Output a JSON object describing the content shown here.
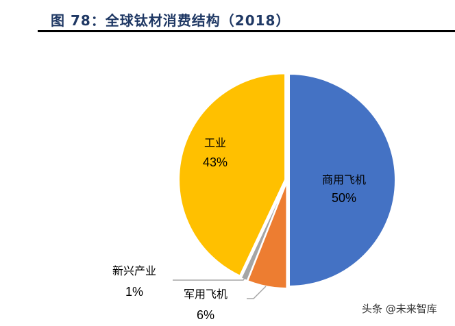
{
  "title": "图 78：全球钛材消费结构（2018）",
  "watermark": "头条 @未来智库",
  "chart_data": {
    "type": "pie",
    "title": "图 78：全球钛材消费结构（2018）",
    "start_angle": "top",
    "direction": "clockwise",
    "slices": [
      {
        "name": "商用飞机",
        "value": 50,
        "label": "50%",
        "color": "#4472c4"
      },
      {
        "name": "军用飞机",
        "value": 6,
        "label": "6%",
        "color": "#ed7d31"
      },
      {
        "name": "新兴产业",
        "value": 1,
        "label": "1%",
        "color": "#a5a5a5"
      },
      {
        "name": "工业",
        "value": 43,
        "label": "43%",
        "color": "#ffc000"
      }
    ]
  }
}
